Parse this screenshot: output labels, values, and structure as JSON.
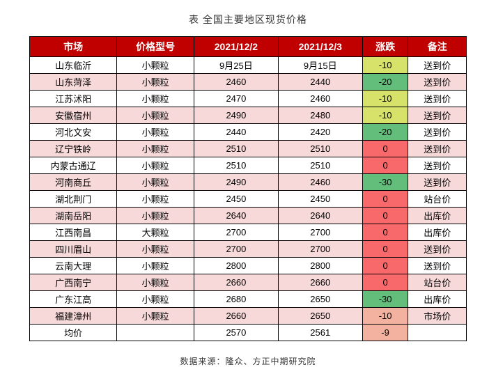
{
  "title": "表 全国主要地区现货价格",
  "source": "数据来源：隆众、方正中期研究院",
  "columns": [
    "市场",
    "价格型号",
    "2021/12/2",
    "2021/12/3",
    "涨跌",
    "备注"
  ],
  "change_colors": {
    "yellow": "#d7e26a",
    "green": "#63be7b",
    "red": "#f8696b",
    "pink": "#f3b1a0"
  },
  "row_bg": {
    "white": "#ffffff",
    "pink": "#f7d9d9"
  },
  "rows": [
    {
      "bg": "white",
      "market": "山东临沂",
      "type": "小颗粒",
      "d1": "9月25日",
      "d2": "9月15日",
      "chg": "-10",
      "chg_color": "yellow",
      "note": "送到价"
    },
    {
      "bg": "pink",
      "market": "山东菏泽",
      "type": "小颗粒",
      "d1": "2460",
      "d2": "2440",
      "chg": "-20",
      "chg_color": "green",
      "note": "送到价"
    },
    {
      "bg": "white",
      "market": "江苏沭阳",
      "type": "小颗粒",
      "d1": "2470",
      "d2": "2460",
      "chg": "-10",
      "chg_color": "yellow",
      "note": "送到价"
    },
    {
      "bg": "pink",
      "market": "安徽宿州",
      "type": "小颗粒",
      "d1": "2490",
      "d2": "2480",
      "chg": "-10",
      "chg_color": "yellow",
      "note": "送到价"
    },
    {
      "bg": "white",
      "market": "河北文安",
      "type": "小颗粒",
      "d1": "2440",
      "d2": "2420",
      "chg": "-20",
      "chg_color": "green",
      "note": "送到价"
    },
    {
      "bg": "pink",
      "market": "辽宁铁岭",
      "type": "小颗粒",
      "d1": "2510",
      "d2": "2510",
      "chg": "0",
      "chg_color": "red",
      "note": "送到价"
    },
    {
      "bg": "white",
      "market": "内蒙古通辽",
      "type": "小颗粒",
      "d1": "2510",
      "d2": "2510",
      "chg": "0",
      "chg_color": "red",
      "note": "送到价"
    },
    {
      "bg": "pink",
      "market": "河南商丘",
      "type": "小颗粒",
      "d1": "2490",
      "d2": "2460",
      "chg": "-30",
      "chg_color": "green",
      "note": "送到价"
    },
    {
      "bg": "white",
      "market": "湖北荆门",
      "type": "小颗粒",
      "d1": "2450",
      "d2": "2450",
      "chg": "0",
      "chg_color": "red",
      "note": "站台价"
    },
    {
      "bg": "pink",
      "market": "湖南岳阳",
      "type": "小颗粒",
      "d1": "2640",
      "d2": "2640",
      "chg": "0",
      "chg_color": "red",
      "note": "出库价"
    },
    {
      "bg": "white",
      "market": "江西南昌",
      "type": "大颗粒",
      "d1": "2700",
      "d2": "2700",
      "chg": "0",
      "chg_color": "red",
      "note": "出库价"
    },
    {
      "bg": "pink",
      "market": "四川眉山",
      "type": "小颗粒",
      "d1": "2700",
      "d2": "2700",
      "chg": "0",
      "chg_color": "red",
      "note": "送到价"
    },
    {
      "bg": "white",
      "market": "云南大理",
      "type": "小颗粒",
      "d1": "2800",
      "d2": "2800",
      "chg": "0",
      "chg_color": "red",
      "note": "送到价"
    },
    {
      "bg": "pink",
      "market": "广西南宁",
      "type": "小颗粒",
      "d1": "2660",
      "d2": "2660",
      "chg": "0",
      "chg_color": "red",
      "note": "站台价"
    },
    {
      "bg": "white",
      "market": "广东江高",
      "type": "小颗粒",
      "d1": "2680",
      "d2": "2650",
      "chg": "-30",
      "chg_color": "green",
      "note": "出库价"
    },
    {
      "bg": "pink",
      "market": "福建漳州",
      "type": "小颗粒",
      "d1": "2660",
      "d2": "2650",
      "chg": "-10",
      "chg_color": "pink",
      "note": "市场价"
    },
    {
      "bg": "white",
      "market": "均价",
      "type": "",
      "d1": "2570",
      "d2": "2561",
      "chg": "-9",
      "chg_color": "pink",
      "note": ""
    }
  ]
}
